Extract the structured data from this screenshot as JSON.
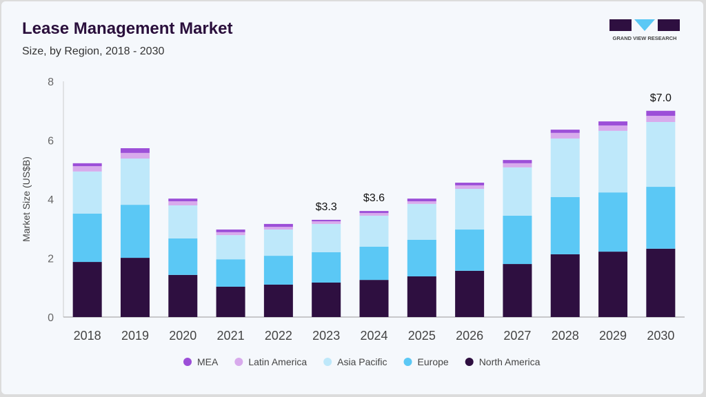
{
  "header": {
    "title": "Lease Management Market",
    "subtitle": "Size, by Region, 2018 - 2030"
  },
  "logo": {
    "text": "GRAND VIEW RESEARCH"
  },
  "chart_data": {
    "type": "bar",
    "stacked": true,
    "ylabel": "Market Size (US$B)",
    "xlabel": "",
    "ylim": [
      0,
      8
    ],
    "yticks": [
      0,
      2,
      4,
      6,
      8
    ],
    "grid": false,
    "legend_position": "bottom",
    "categories": [
      "2018",
      "2019",
      "2020",
      "2021",
      "2022",
      "2023",
      "2024",
      "2025",
      "2026",
      "2027",
      "2028",
      "2029",
      "2030"
    ],
    "series": [
      {
        "name": "North America",
        "color": "#2e0f40",
        "values": [
          1.87,
          2.01,
          1.43,
          1.03,
          1.1,
          1.17,
          1.26,
          1.38,
          1.57,
          1.8,
          2.13,
          2.22,
          2.32
        ]
      },
      {
        "name": "Europe",
        "color": "#5bc8f5",
        "values": [
          1.64,
          1.8,
          1.24,
          0.93,
          0.98,
          1.03,
          1.13,
          1.24,
          1.4,
          1.64,
          1.94,
          2.01,
          2.1
        ]
      },
      {
        "name": "Asia Pacific",
        "color": "#bee8fa",
        "values": [
          1.43,
          1.57,
          1.12,
          0.82,
          0.89,
          0.96,
          1.05,
          1.22,
          1.38,
          1.64,
          1.99,
          2.09,
          2.2
        ]
      },
      {
        "name": "Latin America",
        "color": "#d8aaec",
        "values": [
          0.18,
          0.19,
          0.14,
          0.1,
          0.09,
          0.09,
          0.09,
          0.09,
          0.12,
          0.14,
          0.19,
          0.18,
          0.21
        ]
      },
      {
        "name": "MEA",
        "color": "#9c4fd8",
        "values": [
          0.1,
          0.16,
          0.09,
          0.09,
          0.1,
          0.05,
          0.07,
          0.09,
          0.09,
          0.11,
          0.11,
          0.14,
          0.17
        ]
      }
    ],
    "annotations": [
      {
        "category": "2023",
        "text": "$3.3"
      },
      {
        "category": "2024",
        "text": "$3.6"
      },
      {
        "category": "2030",
        "text": "$7.0"
      }
    ],
    "legend_order": [
      "MEA",
      "Latin America",
      "Asia Pacific",
      "Europe",
      "North America"
    ]
  }
}
